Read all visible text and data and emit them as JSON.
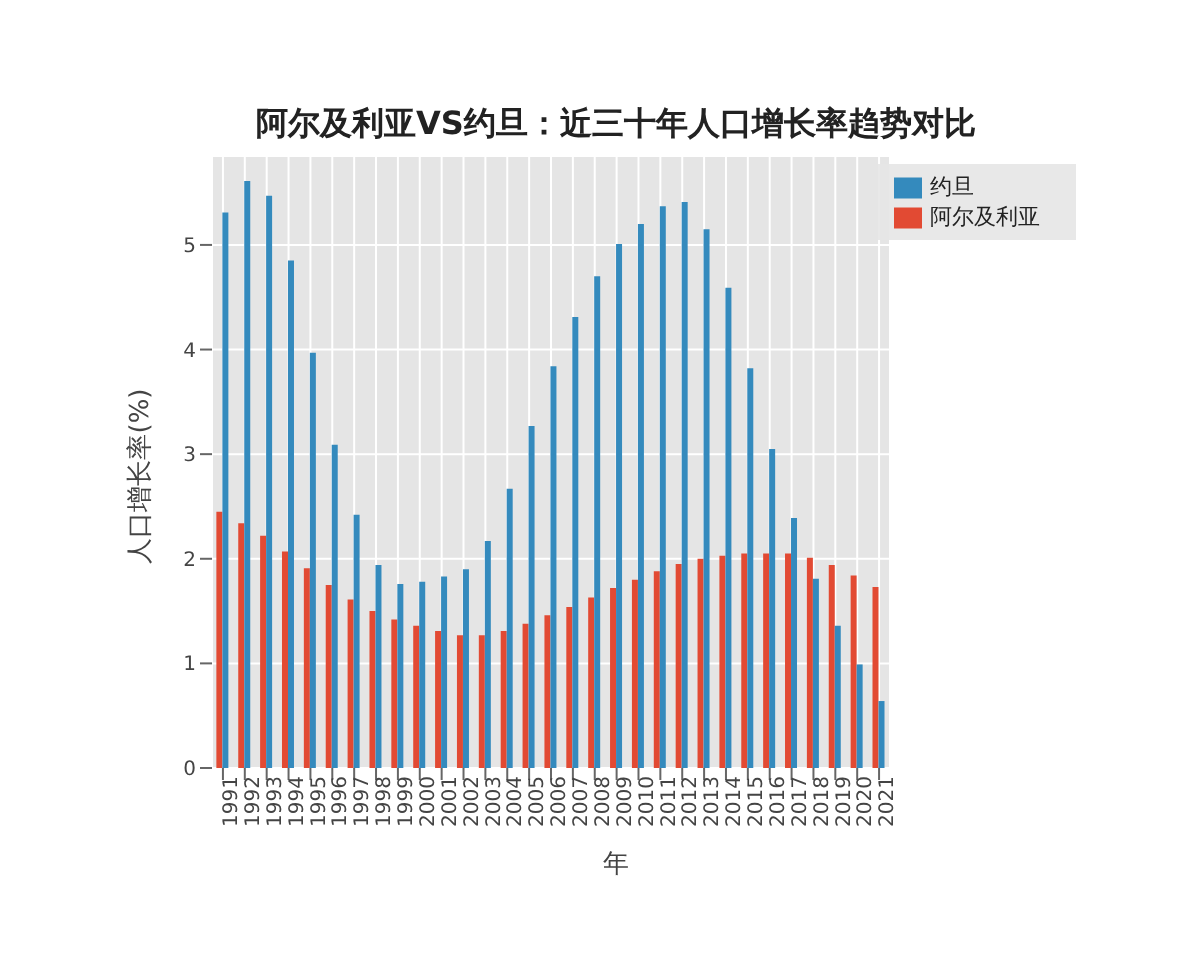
{
  "chart_data": {
    "type": "bar",
    "title": "阿尔及利亚VS约旦：近三十年人口增长率趋势对比",
    "xlabel": "年",
    "ylabel": "人口增长率(%)",
    "categories": [
      "1991",
      "1992",
      "1993",
      "1994",
      "1995",
      "1996",
      "1997",
      "1998",
      "1999",
      "2000",
      "2001",
      "2002",
      "2003",
      "2004",
      "2005",
      "2006",
      "2007",
      "2008",
      "2009",
      "2010",
      "2011",
      "2012",
      "2013",
      "2014",
      "2015",
      "2016",
      "2017",
      "2018",
      "2019",
      "2020",
      "2021"
    ],
    "series": [
      {
        "name": "阿尔及利亚",
        "color": "#e24a33",
        "values": [
          2.45,
          2.34,
          2.22,
          2.07,
          1.91,
          1.75,
          1.61,
          1.5,
          1.42,
          1.36,
          1.31,
          1.27,
          1.27,
          1.31,
          1.38,
          1.46,
          1.54,
          1.63,
          1.72,
          1.8,
          1.88,
          1.95,
          2.0,
          2.03,
          2.05,
          2.05,
          2.05,
          2.01,
          1.94,
          1.84,
          1.73
        ]
      },
      {
        "name": "约旦",
        "color": "#348abd",
        "values": [
          5.31,
          5.61,
          5.47,
          4.85,
          3.97,
          3.09,
          2.42,
          1.94,
          1.76,
          1.78,
          1.83,
          1.9,
          2.17,
          2.67,
          3.27,
          3.84,
          4.31,
          4.7,
          5.01,
          5.2,
          5.37,
          5.41,
          5.15,
          4.59,
          3.82,
          3.05,
          2.39,
          1.81,
          1.36,
          0.99,
          0.64
        ]
      }
    ],
    "ylim": [
      0,
      5.85
    ],
    "yticks": [
      0,
      1,
      2,
      3,
      4,
      5
    ],
    "grid": true,
    "legend": "top right"
  }
}
